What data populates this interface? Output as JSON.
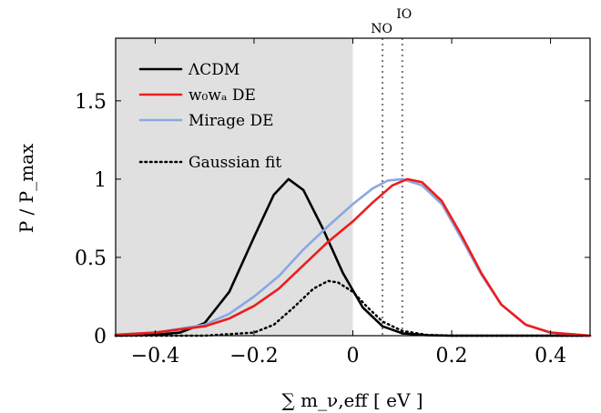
{
  "chart_data": {
    "type": "line",
    "title": "",
    "xlabel": "∑ m_ν,eff [ eV ]",
    "ylabel": "P / P_max",
    "xlim": [
      -0.48,
      0.48
    ],
    "ylim": [
      0,
      1.9
    ],
    "x_ticks": [
      -0.4,
      -0.2,
      0,
      0.2,
      0.4
    ],
    "x_tick_labels": [
      "−0.4",
      "−0.2",
      "0",
      "0.2",
      "0.4"
    ],
    "y_ticks": [
      0,
      0.5,
      1,
      1.5
    ],
    "y_tick_labels": [
      "0",
      "0.5",
      "1",
      "1.5"
    ],
    "grid": false,
    "legend_position": "top-left",
    "shaded_region": {
      "x_from": -0.48,
      "x_to": 0,
      "color": "#e0e0e0"
    },
    "vertical_markers": [
      {
        "label": "NO",
        "x": 0.06
      },
      {
        "label": "IO",
        "x": 0.1
      }
    ],
    "series": [
      {
        "name": "ΛCDM",
        "color": "#000000",
        "style": "solid",
        "x": [
          -0.48,
          -0.4,
          -0.35,
          -0.3,
          -0.25,
          -0.2,
          -0.16,
          -0.13,
          -0.1,
          -0.06,
          -0.02,
          0.02,
          0.06,
          0.1,
          0.15,
          0.2,
          0.3,
          0.48
        ],
        "y": [
          0,
          0.005,
          0.02,
          0.08,
          0.28,
          0.63,
          0.9,
          1.0,
          0.93,
          0.68,
          0.4,
          0.18,
          0.06,
          0.015,
          0.003,
          0,
          0,
          0
        ]
      },
      {
        "name": "w₀wₐ DE",
        "color": "#ee1c1c",
        "style": "solid",
        "x": [
          -0.48,
          -0.4,
          -0.3,
          -0.25,
          -0.2,
          -0.15,
          -0.1,
          -0.05,
          0,
          0.04,
          0.08,
          0.11,
          0.14,
          0.18,
          0.22,
          0.26,
          0.3,
          0.35,
          0.4,
          0.48
        ],
        "y": [
          0.005,
          0.02,
          0.06,
          0.11,
          0.19,
          0.3,
          0.45,
          0.6,
          0.73,
          0.85,
          0.96,
          1.0,
          0.98,
          0.86,
          0.64,
          0.4,
          0.2,
          0.07,
          0.02,
          0
        ]
      },
      {
        "name": "Mirage DE",
        "color": "#8aa8e0",
        "style": "solid",
        "x": [
          -0.48,
          -0.4,
          -0.3,
          -0.25,
          -0.2,
          -0.15,
          -0.1,
          -0.05,
          0,
          0.04,
          0.07,
          0.1,
          0.14,
          0.18,
          0.22,
          0.26,
          0.3,
          0.35,
          0.4,
          0.48
        ],
        "y": [
          0.005,
          0.02,
          0.07,
          0.14,
          0.25,
          0.38,
          0.55,
          0.7,
          0.84,
          0.94,
          0.99,
          1.0,
          0.96,
          0.84,
          0.62,
          0.39,
          0.2,
          0.07,
          0.02,
          0
        ]
      },
      {
        "name": "Gaussian fit",
        "color": "#000000",
        "style": "dotted",
        "x": [
          -0.48,
          -0.3,
          -0.2,
          -0.16,
          -0.12,
          -0.08,
          -0.05,
          -0.03,
          0,
          0.03,
          0.06,
          0.1,
          0.15,
          0.2,
          0.48
        ],
        "y": [
          0,
          0,
          0.02,
          0.07,
          0.18,
          0.3,
          0.35,
          0.34,
          0.28,
          0.18,
          0.09,
          0.03,
          0.005,
          0,
          0
        ]
      }
    ]
  }
}
